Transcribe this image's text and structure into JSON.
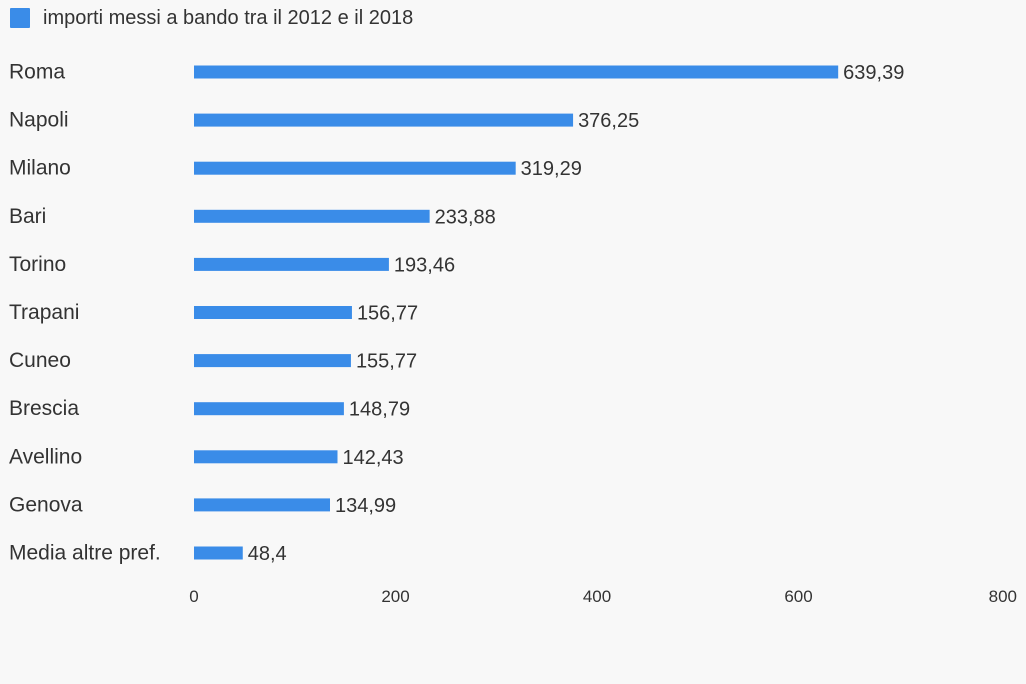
{
  "colors": {
    "bar": "#3a8ce8",
    "text": "#333333",
    "background": "#f8f8f8"
  },
  "chart_data": {
    "type": "bar",
    "orientation": "horizontal",
    "categories": [
      "Roma",
      "Napoli",
      "Milano",
      "Bari",
      "Torino",
      "Trapani",
      "Cuneo",
      "Brescia",
      "Avellino",
      "Genova",
      "Media altre pref."
    ],
    "series": [
      {
        "name": "importi messi a bando tra il 2012 e il 2018",
        "values": [
          639.39,
          376.25,
          319.29,
          233.88,
          193.46,
          156.77,
          155.77,
          148.79,
          142.43,
          134.99,
          48.4
        ],
        "value_labels": [
          "639,39",
          "376,25",
          "319,29",
          "233,88",
          "193,46",
          "156,77",
          "155,77",
          "148,79",
          "142,43",
          "134,99",
          "48,4"
        ]
      }
    ],
    "xlim": [
      0,
      800
    ],
    "xticks": [
      0,
      200,
      400,
      600,
      800
    ],
    "grid": false,
    "legend": "top-left",
    "title": "",
    "xlabel": "",
    "ylabel": ""
  }
}
